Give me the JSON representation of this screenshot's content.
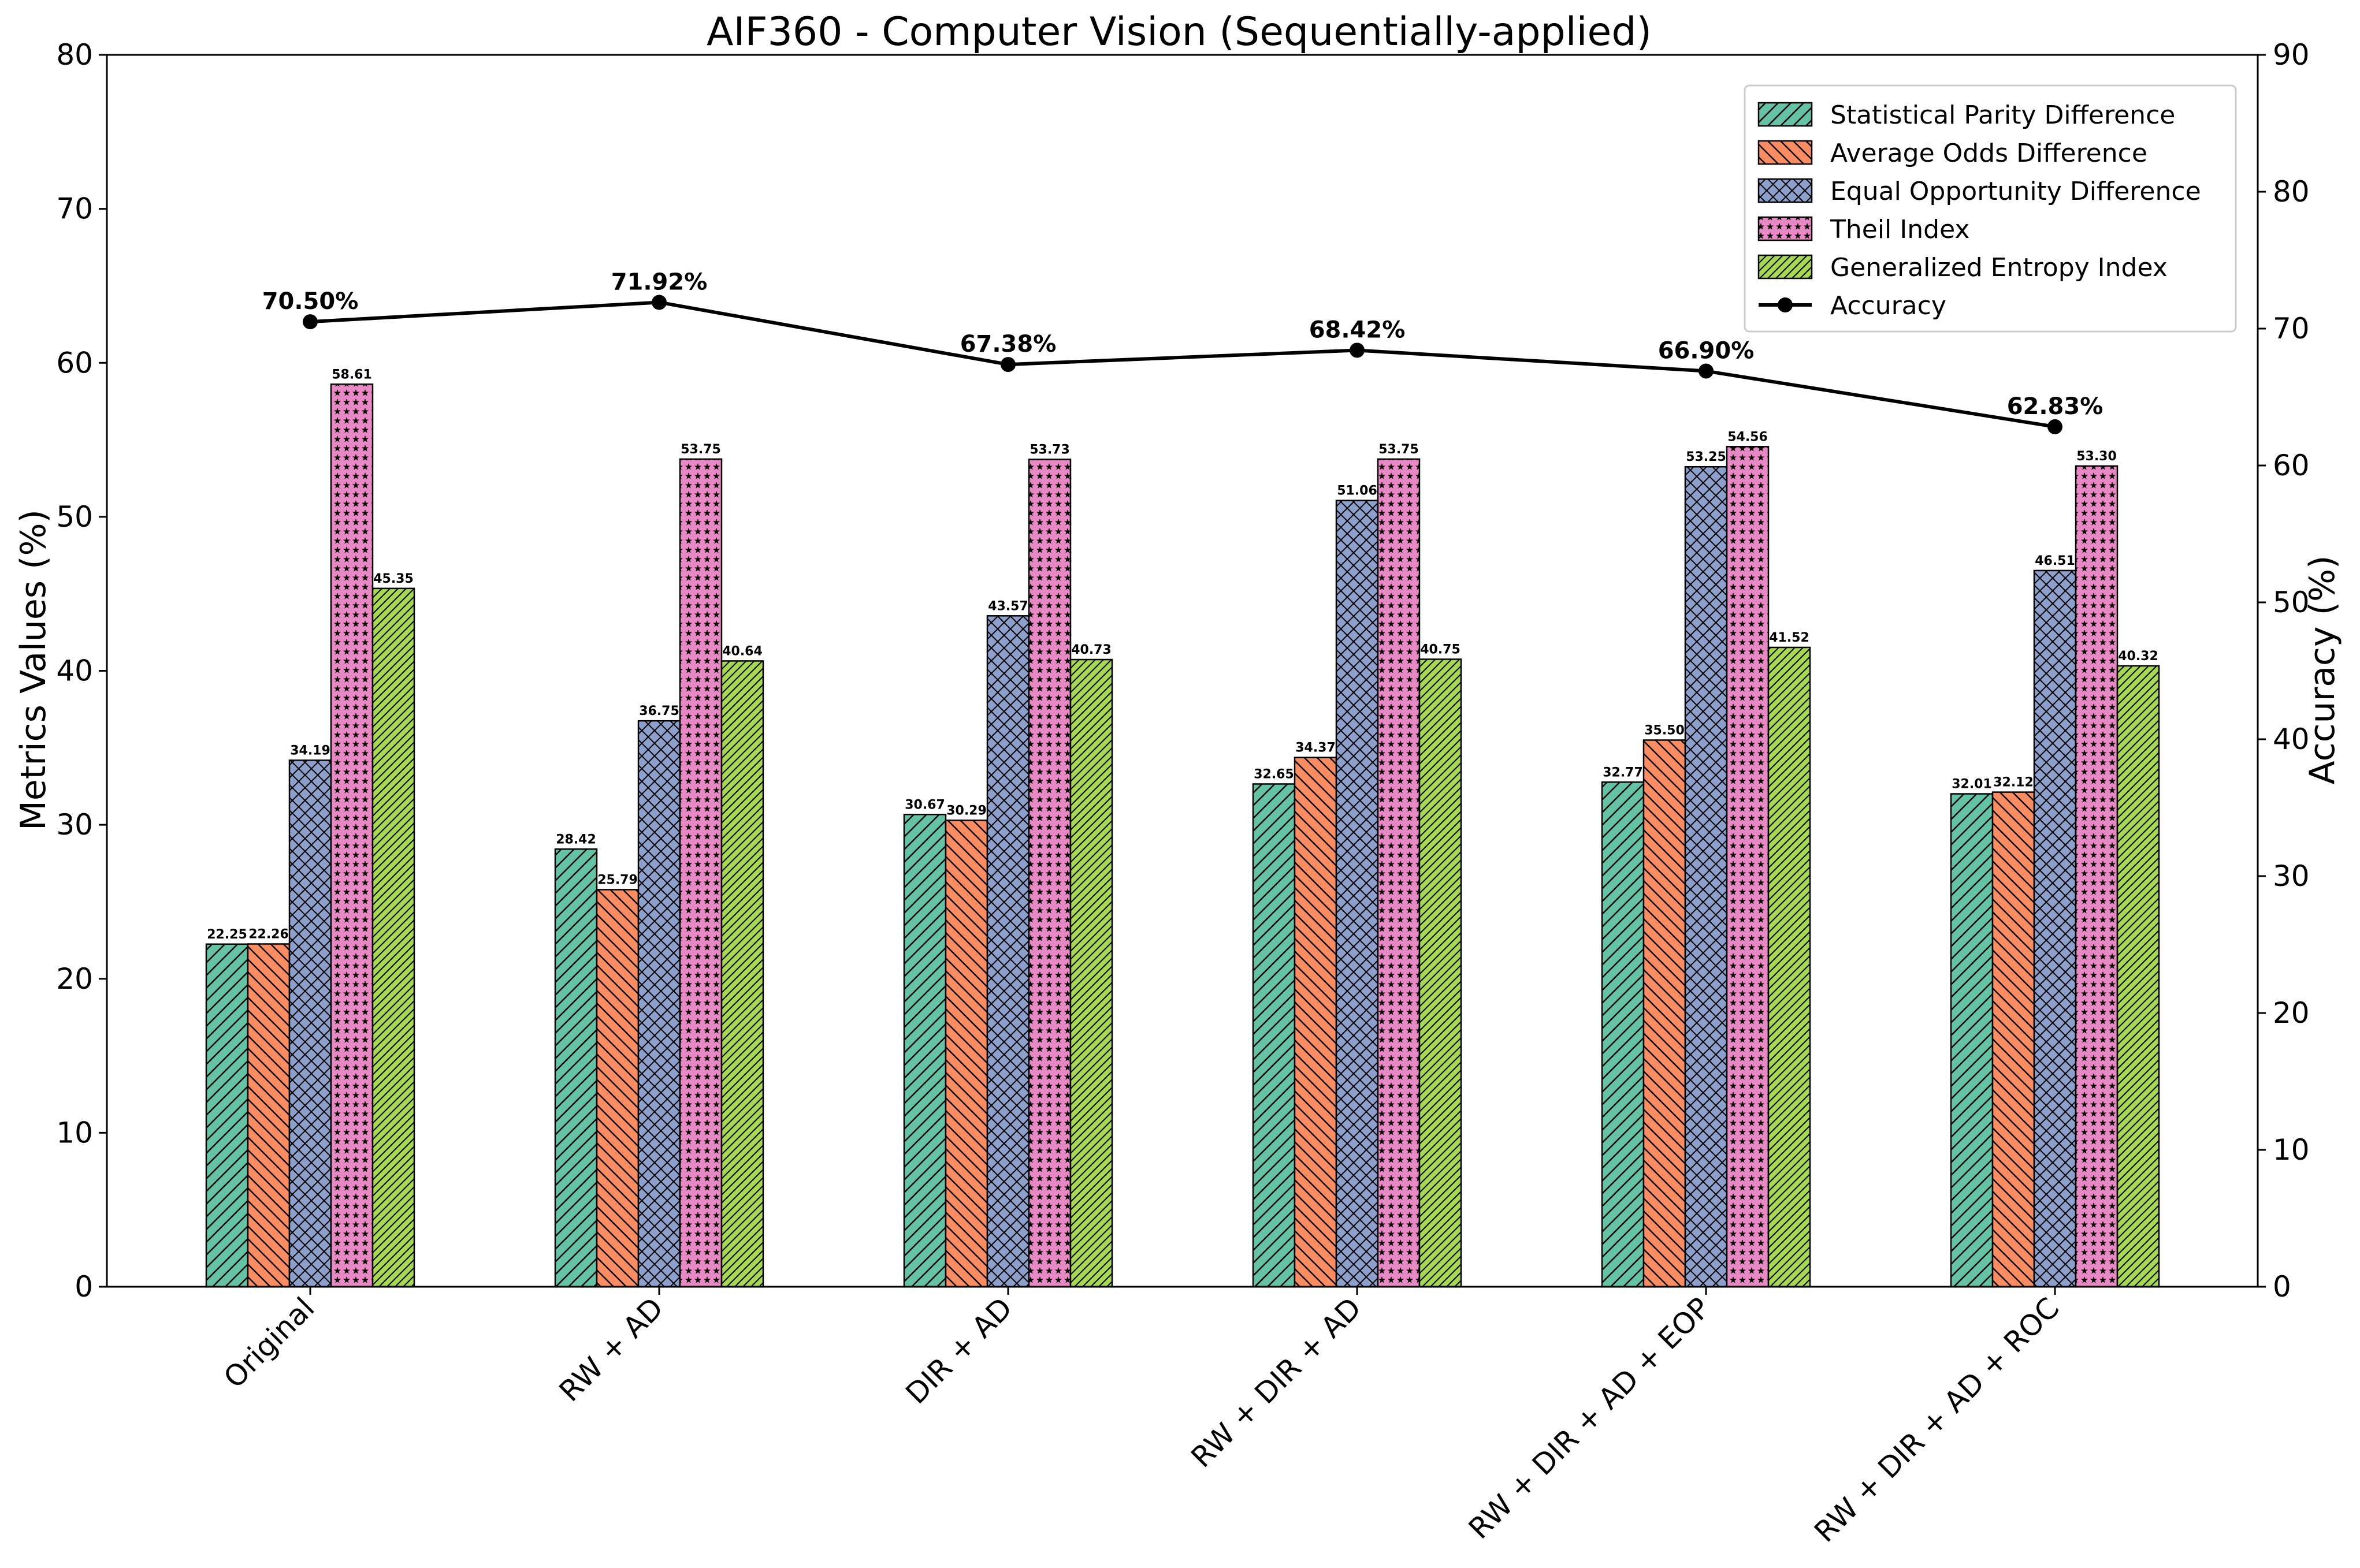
{
  "chart_data": {
    "type": "bar",
    "title": "AIF360 - Computer Vision (Sequentially-applied)",
    "ylabel": "Metrics Values (%)",
    "y2label": "Accuracy (%)",
    "ylim": [
      0,
      80
    ],
    "y2lim": [
      0,
      90
    ],
    "yticks": [
      0,
      10,
      20,
      30,
      40,
      50,
      60,
      70,
      80
    ],
    "y2ticks": [
      0,
      10,
      20,
      30,
      40,
      50,
      60,
      70,
      80,
      90
    ],
    "categories": [
      "Original",
      "RW + AD",
      "DIR + AD",
      "RW + DIR + AD",
      "RW + DIR + AD + EOP",
      "RW + DIR + AD + ROC"
    ],
    "series": [
      {
        "name": "Statistical Parity Difference",
        "color": "#66c2a5",
        "hatch": "diag-fwd",
        "values": [
          22.25,
          28.42,
          30.67,
          32.65,
          32.77,
          32.01
        ],
        "labels": [
          "22.25",
          "28.42",
          "30.67",
          "32.65",
          "32.77",
          "32.01"
        ]
      },
      {
        "name": "Average Odds Difference",
        "color": "#fc8d62",
        "hatch": "diag-back",
        "values": [
          22.26,
          25.79,
          30.29,
          34.37,
          35.5,
          32.12
        ],
        "labels": [
          "22.26",
          "25.79",
          "30.29",
          "34.37",
          "35.50",
          "32.12"
        ]
      },
      {
        "name": "Equal Opportunity Difference",
        "color": "#8da0cb",
        "hatch": "cross",
        "values": [
          34.19,
          36.75,
          43.57,
          51.06,
          53.25,
          46.51
        ],
        "labels": [
          "34.19",
          "36.75",
          "43.57",
          "51.06",
          "53.25",
          "46.51"
        ]
      },
      {
        "name": "Theil Index",
        "color": "#e78ac3",
        "hatch": "stars",
        "values": [
          58.61,
          53.75,
          53.73,
          53.75,
          54.56,
          53.3
        ],
        "labels": [
          "58.61",
          "53.75",
          "53.73",
          "53.75",
          "54.56",
          "53.30"
        ]
      },
      {
        "name": "Generalized Entropy Index",
        "color": "#a6d854",
        "hatch": "diag-fwd-dense",
        "values": [
          45.35,
          40.64,
          40.73,
          40.75,
          41.52,
          40.32
        ],
        "labels": [
          "45.35",
          "40.64",
          "40.73",
          "40.75",
          "41.52",
          "40.32"
        ]
      }
    ],
    "accuracy": {
      "name": "Accuracy",
      "color": "#000000",
      "values": [
        70.5,
        71.92,
        67.38,
        68.42,
        66.9,
        62.83
      ],
      "labels": [
        "70.50%",
        "71.92%",
        "67.38%",
        "68.42%",
        "66.90%",
        "62.83%"
      ]
    },
    "legend": "top-right"
  }
}
